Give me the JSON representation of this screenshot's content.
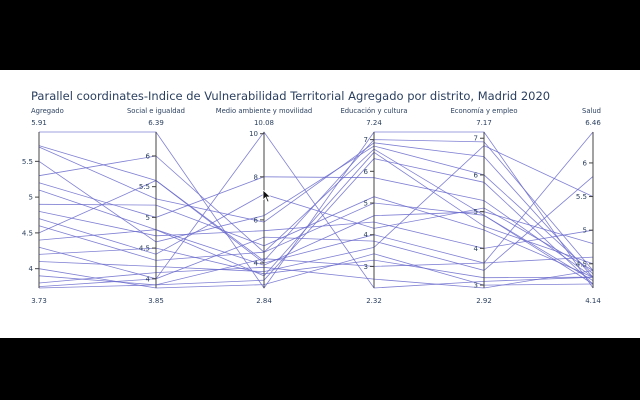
{
  "chart_data": {
    "type": "parallel_coordinates",
    "title": "Parallel coordinates-Indice de Vulnerabilidad Territorial Agregado por distrito, Madrid 2020",
    "line_color": "#6a6acc",
    "axes": [
      {
        "label": "Agregado",
        "max": 5.91,
        "min": 3.73,
        "max_label": "5.91",
        "min_label": "3.73",
        "ticks": [
          {
            "v": 4,
            "t": "4"
          },
          {
            "v": 4.5,
            "t": "4.5"
          },
          {
            "v": 5,
            "t": "5"
          },
          {
            "v": 5.5,
            "t": "5.5"
          }
        ]
      },
      {
        "label": "Social e igualdad",
        "max": 6.39,
        "min": 3.85,
        "max_label": "6.39",
        "min_label": "3.85",
        "ticks": [
          {
            "v": 4,
            "t": "4"
          },
          {
            "v": 4.5,
            "t": "4.5"
          },
          {
            "v": 5,
            "t": "5"
          },
          {
            "v": 5.5,
            "t": "5.5"
          },
          {
            "v": 6,
            "t": "6"
          }
        ]
      },
      {
        "label": "Medio ambiente y movilidad",
        "max": 10.08,
        "min": 2.84,
        "max_label": "10.08",
        "min_label": "2.84",
        "ticks": [
          {
            "v": 4,
            "t": "4"
          },
          {
            "v": 6,
            "t": "6"
          },
          {
            "v": 8,
            "t": "8"
          },
          {
            "v": 10,
            "t": "10"
          }
        ]
      },
      {
        "label": "Educación y cultura",
        "max": 7.24,
        "min": 2.32,
        "max_label": "7.24",
        "min_label": "2.32",
        "ticks": [
          {
            "v": 3,
            "t": "3"
          },
          {
            "v": 4,
            "t": "4"
          },
          {
            "v": 5,
            "t": "5"
          },
          {
            "v": 6,
            "t": "6"
          },
          {
            "v": 7,
            "t": "7"
          }
        ]
      },
      {
        "label": "Economía y empleo",
        "max": 7.17,
        "min": 2.92,
        "max_label": "7.17",
        "min_label": "2.92",
        "ticks": [
          {
            "v": 3,
            "t": "3"
          },
          {
            "v": 4,
            "t": "4"
          },
          {
            "v": 5,
            "t": "5"
          },
          {
            "v": 6,
            "t": "6"
          },
          {
            "v": 7,
            "t": "7"
          }
        ]
      },
      {
        "label": "Salud",
        "max": 6.46,
        "min": 4.14,
        "max_label": "6.46",
        "min_label": "4.14",
        "ticks": [
          {
            "v": 4.5,
            "t": "4.5"
          },
          {
            "v": 5,
            "t": "5"
          },
          {
            "v": 5.5,
            "t": "5.5"
          },
          {
            "v": 6,
            "t": "6"
          }
        ]
      }
    ],
    "lines": [
      [
        5.91,
        6.39,
        2.84,
        7.24,
        7.17,
        4.14
      ],
      [
        5.72,
        5.6,
        4.1,
        7.0,
        6.9,
        4.4
      ],
      [
        5.7,
        5.3,
        5.9,
        6.9,
        6.5,
        4.3
      ],
      [
        5.5,
        4.6,
        6.2,
        6.8,
        6.0,
        4.35
      ],
      [
        5.3,
        6.0,
        4.5,
        6.7,
        4.9,
        4.25
      ],
      [
        5.1,
        4.8,
        3.4,
        6.6,
        4.6,
        4.5
      ],
      [
        4.9,
        5.2,
        4.8,
        5.2,
        4.5,
        4.3
      ],
      [
        4.7,
        4.4,
        7.2,
        4.2,
        5.1,
        4.4
      ],
      [
        4.6,
        4.3,
        4.5,
        5.0,
        4.9,
        4.2
      ],
      [
        4.5,
        5.6,
        4.0,
        4.0,
        3.6,
        6.46
      ],
      [
        4.3,
        4.0,
        5.2,
        3.8,
        3.4,
        5.8
      ],
      [
        4.2,
        4.5,
        3.5,
        3.2,
        3.2,
        4.3
      ],
      [
        4.1,
        4.2,
        3.6,
        3.6,
        6.8,
        5.5
      ],
      [
        4.0,
        3.85,
        3.0,
        3.4,
        3.0,
        4.2
      ],
      [
        3.9,
        3.9,
        4.2,
        3.0,
        3.6,
        4.6
      ],
      [
        3.8,
        4.1,
        3.8,
        2.6,
        2.92,
        4.4
      ],
      [
        3.75,
        4.0,
        10.08,
        2.32,
        3.1,
        4.3
      ],
      [
        3.73,
        3.9,
        3.2,
        6.4,
        5.8,
        4.2
      ],
      [
        5.2,
        5.0,
        8.0,
        5.8,
        5.3,
        4.3
      ],
      [
        4.8,
        4.7,
        5.5,
        4.4,
        4.0,
        5.0
      ],
      [
        4.4,
        4.8,
        3.9,
        4.6,
        5.0,
        4.8
      ]
    ]
  }
}
